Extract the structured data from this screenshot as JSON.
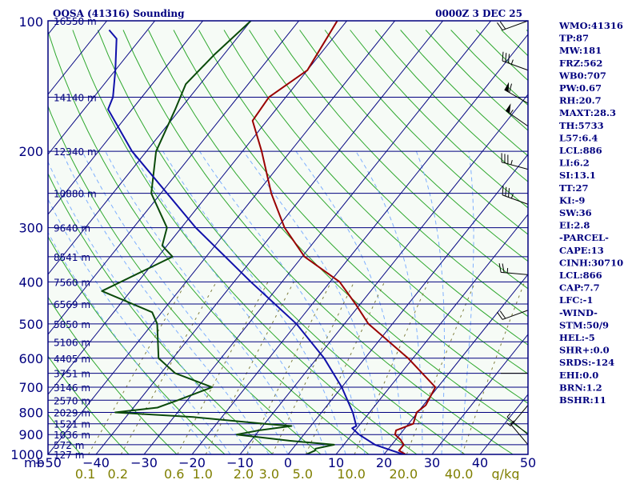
{
  "title": "OQSA (41316) Sounding",
  "valid_time": "0000Z  3 DEC 25",
  "colors": {
    "background": "#f6fbf6",
    "frame": "#00007f",
    "isotherm": "#00007f",
    "dry_adiabat": "#2fa82f",
    "moist_adiabat": "#7fb0ff",
    "mixing_ratio": "#7f7f3f",
    "temperature": "#9a0000",
    "dewpoint": "#0a4a0a",
    "parcel": "#1010aa",
    "text": "#00007f",
    "mix_text": "#7f7f00"
  },
  "indices": [
    "WMO:41316",
    "TP:87",
    "MW:181",
    "FRZ:562",
    "WB0:707",
    "PW:0.67",
    "RH:20.7",
    "MAXT:28.3",
    "TH:5733",
    "L57:6.4",
    "LCL:886",
    "LI:6.2",
    "SI:13.1",
    "TT:27",
    "KI:-9",
    "SW:36",
    "EI:2.8",
    "-PARCEL-",
    "CAPE:13",
    "CINH:30710",
    "LCL:866",
    "CAP:7.7",
    "LFC:-1",
    "-WIND-",
    "STM:50/9",
    "HEL:-5",
    "SHR+:0.0",
    "SRDS:-124",
    "EHI:0.0",
    "BRN:1.2",
    "BSHR:11"
  ],
  "chart_data": {
    "type": "line",
    "title": "OQSA (41316) Sounding",
    "subtitle": "0000Z  3 DEC 25",
    "ylabel": "mb",
    "xlabel_mixing": "g/kg",
    "y_log_scale": true,
    "ylim": [
      1000,
      100
    ],
    "xlim_bottom": [
      -50,
      50
    ],
    "pressure_ticks": [
      "100",
      "200",
      "300",
      "400",
      "500",
      "600",
      "700",
      "800",
      "900",
      "1000"
    ],
    "temperature_ticks": [
      "−50",
      "−40",
      "−30",
      "−20",
      "−10",
      "0",
      "10",
      "20",
      "30",
      "40",
      "50"
    ],
    "mixing_ratio_ticks": [
      "0.1",
      "0.2",
      "0.6",
      "1.0",
      "2.0",
      "3.0",
      "5.0",
      "10.0",
      "20.0",
      "40.0"
    ],
    "height_labels": [
      {
        "p": 100,
        "label": "16550 m"
      },
      {
        "p": 150,
        "label": "14140 m"
      },
      {
        "p": 200,
        "label": "12340 m"
      },
      {
        "p": 250,
        "label": "10880 m"
      },
      {
        "p": 300,
        "label": "9640 m"
      },
      {
        "p": 350,
        "label": "8541 m"
      },
      {
        "p": 400,
        "label": "7560 m"
      },
      {
        "p": 450,
        "label": "6569 m"
      },
      {
        "p": 500,
        "label": "5850 m"
      },
      {
        "p": 550,
        "label": "5106 m"
      },
      {
        "p": 600,
        "label": "4405 m"
      },
      {
        "p": 650,
        "label": "3751 m"
      },
      {
        "p": 700,
        "label": "3146 m"
      },
      {
        "p": 750,
        "label": "2570 m"
      },
      {
        "p": 800,
        "label": "2029 m"
      },
      {
        "p": 850,
        "label": "1521 m"
      },
      {
        "p": 900,
        "label": "1036 m"
      },
      {
        "p": 950,
        "label": "572 m"
      },
      {
        "p": 1000,
        "label": "127 m"
      }
    ],
    "series": [
      {
        "name": "temperature",
        "points": [
          [
            1000,
            24.5
          ],
          [
            980,
            22.5
          ],
          [
            950,
            22.5
          ],
          [
            925,
            21
          ],
          [
            900,
            19
          ],
          [
            880,
            18.5
          ],
          [
            850,
            21
          ],
          [
            800,
            19.8
          ],
          [
            770,
            20.5
          ],
          [
            700,
            19.5
          ],
          [
            600,
            9
          ],
          [
            500,
            -5
          ],
          [
            450,
            -11
          ],
          [
            400,
            -18
          ],
          [
            350,
            -29.5
          ],
          [
            300,
            -38.5
          ],
          [
            250,
            -47
          ],
          [
            200,
            -56
          ],
          [
            170,
            -63
          ],
          [
            150,
            -63.5
          ],
          [
            130,
            -60
          ],
          [
            100,
            -62
          ]
        ]
      },
      {
        "name": "dewpoint",
        "points": [
          [
            1000,
            3.8
          ],
          [
            980,
            5
          ],
          [
            970,
            4.8
          ],
          [
            950,
            8
          ],
          [
            930,
            -2
          ],
          [
            900,
            -14
          ],
          [
            880,
            -10
          ],
          [
            860,
            -4
          ],
          [
            850,
            -10
          ],
          [
            820,
            -26
          ],
          [
            800,
            -43
          ],
          [
            780,
            -35
          ],
          [
            750,
            -32
          ],
          [
            700,
            -27
          ],
          [
            650,
            -37
          ],
          [
            600,
            -43
          ],
          [
            500,
            -49
          ],
          [
            470,
            -52
          ],
          [
            420,
            -66
          ],
          [
            350,
            -57
          ],
          [
            330,
            -61
          ],
          [
            300,
            -63
          ],
          [
            250,
            -72
          ],
          [
            200,
            -78
          ],
          [
            160,
            -81
          ],
          [
            140,
            -83
          ],
          [
            120,
            -82
          ],
          [
            100,
            -80
          ]
        ]
      },
      {
        "name": "parcel",
        "points": [
          [
            1000,
            24
          ],
          [
            950,
            16.5
          ],
          [
            900,
            11.5
          ],
          [
            870,
            9
          ],
          [
            860,
            9.5
          ],
          [
            800,
            6.5
          ],
          [
            700,
            0
          ],
          [
            600,
            -8.5
          ],
          [
            500,
            -20
          ],
          [
            400,
            -36.5
          ],
          [
            300,
            -57
          ],
          [
            200,
            -83
          ],
          [
            160,
            -95
          ],
          [
            150,
            -96
          ],
          [
            130,
            -100
          ],
          [
            110,
            -105
          ],
          [
            105,
            -108
          ]
        ]
      }
    ],
    "wind_barbs": [
      {
        "p": 100,
        "dir": 250,
        "spd": 20
      },
      {
        "p": 130,
        "dir": 290,
        "spd": 35
      },
      {
        "p": 155,
        "dir": 300,
        "spd": 60
      },
      {
        "p": 175,
        "dir": 305,
        "spd": 55
      },
      {
        "p": 220,
        "dir": 285,
        "spd": 35
      },
      {
        "p": 265,
        "dir": 290,
        "spd": 35
      },
      {
        "p": 385,
        "dir": 275,
        "spd": 25
      },
      {
        "p": 465,
        "dir": 250,
        "spd": 20
      },
      {
        "p": 650,
        "dir": 270,
        "spd": 0
      },
      {
        "p": 770,
        "dir": 220,
        "spd": 5
      },
      {
        "p": 900,
        "dir": 310,
        "spd": 5
      },
      {
        "p": 950,
        "dir": 320,
        "spd": 5
      }
    ]
  }
}
